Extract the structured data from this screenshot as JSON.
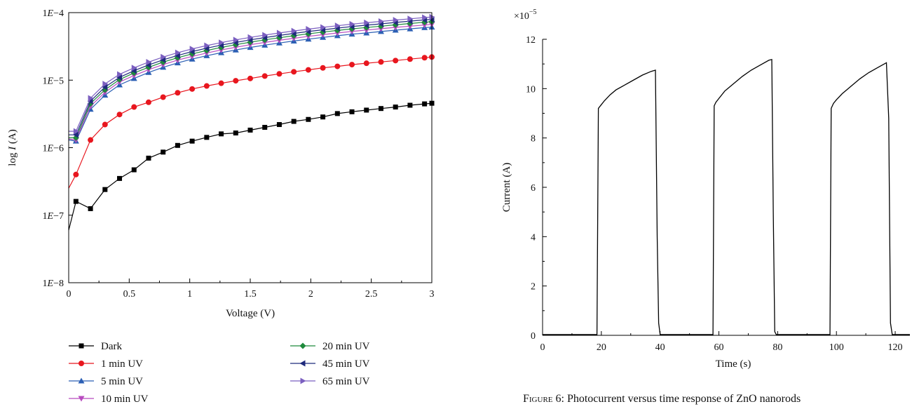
{
  "chart_data": [
    {
      "type": "line",
      "xlabel": "Voltage (V)",
      "ylabel_prefix": "log ",
      "ylabel_var": "I",
      "ylabel_suffix": " (A)",
      "xlim": [
        0,
        3
      ],
      "ylim": [
        1e-08,
        0.0001
      ],
      "yscale": "log",
      "grid": false,
      "legend": "below",
      "x_ticks": [
        "0",
        "0.5",
        "1",
        "1.5",
        "2",
        "2.5",
        "3"
      ],
      "y_ticks": [
        {
          "pre": "1",
          "e": "E",
          "exp": "−4"
        },
        {
          "pre": "1",
          "e": "E",
          "exp": "−5"
        },
        {
          "pre": "1",
          "e": "E",
          "exp": "−6"
        },
        {
          "pre": "1",
          "e": "E",
          "exp": "−7"
        },
        {
          "pre": "1",
          "e": "E",
          "exp": "−8"
        }
      ],
      "x": [
        0,
        0.06,
        0.18,
        0.3,
        0.42,
        0.54,
        0.66,
        0.78,
        0.9,
        1.02,
        1.14,
        1.26,
        1.38,
        1.5,
        1.62,
        1.74,
        1.86,
        1.98,
        2.1,
        2.22,
        2.34,
        2.46,
        2.58,
        2.7,
        2.82,
        2.94,
        3.0
      ],
      "series": [
        {
          "name": "Dark",
          "color": "#000000",
          "marker": "square",
          "first_point_marker": false,
          "values": [
            6e-08,
            1.6e-07,
            1.25e-07,
            2.4e-07,
            3.5e-07,
            4.7e-07,
            7e-07,
            8.6e-07,
            1.08e-06,
            1.25e-06,
            1.42e-06,
            1.6e-06,
            1.65e-06,
            1.82e-06,
            2e-06,
            2.2e-06,
            2.45e-06,
            2.62e-06,
            2.85e-06,
            3.2e-06,
            3.4e-06,
            3.6e-06,
            3.8e-06,
            4e-06,
            4.25e-06,
            4.45e-06,
            4.55e-06
          ]
        },
        {
          "name": "1 min UV",
          "color": "#e8161e",
          "marker": "circle",
          "first_point_marker": false,
          "values": [
            2.5e-07,
            4e-07,
            1.3e-06,
            2.2e-06,
            3.1e-06,
            4e-06,
            4.7e-06,
            5.6e-06,
            6.5e-06,
            7.4e-06,
            8.2e-06,
            9e-06,
            9.8e-06,
            1.06e-05,
            1.15e-05,
            1.24e-05,
            1.33e-05,
            1.42e-05,
            1.52e-05,
            1.6e-05,
            1.7e-05,
            1.78e-05,
            1.86e-05,
            1.95e-05,
            2.05e-05,
            2.15e-05,
            2.2e-05
          ]
        },
        {
          "name": "5 min UV",
          "color": "#2b5fb4",
          "marker": "triangle-up",
          "first_point_marker": false,
          "values": [
            1.3e-06,
            1.25e-06,
            3.7e-06,
            6e-06,
            8.5e-06,
            1.06e-05,
            1.3e-05,
            1.55e-05,
            1.8e-05,
            2.05e-05,
            2.3e-05,
            2.55e-05,
            2.8e-05,
            3.05e-05,
            3.3e-05,
            3.55e-05,
            3.8e-05,
            4.05e-05,
            4.3e-05,
            4.55e-05,
            4.8e-05,
            5e-05,
            5.25e-05,
            5.5e-05,
            5.75e-05,
            6e-05,
            6.1e-05
          ]
        },
        {
          "name": "10 min UV",
          "color": "#b84bbf",
          "marker": "triangle-down",
          "first_point_marker": false,
          "values": [
            1.35e-06,
            1.3e-06,
            4.1e-06,
            6.6e-06,
            9.4e-06,
            1.17e-05,
            1.43e-05,
            1.7e-05,
            1.98e-05,
            2.25e-05,
            2.52e-05,
            2.8e-05,
            3.07e-05,
            3.35e-05,
            3.62e-05,
            3.9e-05,
            4.17e-05,
            4.45e-05,
            4.72e-05,
            5e-05,
            5.27e-05,
            5.52e-05,
            5.78e-05,
            6.05e-05,
            6.3e-05,
            6.55e-05,
            6.7e-05
          ]
        },
        {
          "name": "20 min UV",
          "color": "#1e8a3c",
          "marker": "diamond",
          "first_point_marker": false,
          "values": [
            1.4e-06,
            1.4e-06,
            4.5e-06,
            7.2e-06,
            1.02e-05,
            1.28e-05,
            1.55e-05,
            1.85e-05,
            2.15e-05,
            2.45e-05,
            2.75e-05,
            3.05e-05,
            3.35e-05,
            3.65e-05,
            3.95e-05,
            4.25e-05,
            4.55e-05,
            4.85e-05,
            5.15e-05,
            5.45e-05,
            5.75e-05,
            6.02e-05,
            6.3e-05,
            6.6e-05,
            6.9e-05,
            7.2e-05,
            7.35e-05
          ]
        },
        {
          "name": "45 min UV",
          "color": "#1f2a7c",
          "marker": "triangle-left",
          "first_point_marker": false,
          "values": [
            1.55e-06,
            1.55e-06,
            4.9e-06,
            7.9e-06,
            1.1e-05,
            1.38e-05,
            1.68e-05,
            2e-05,
            2.32e-05,
            2.65e-05,
            2.97e-05,
            3.3e-05,
            3.62e-05,
            3.95e-05,
            4.27e-05,
            4.6e-05,
            4.92e-05,
            5.25e-05,
            5.57e-05,
            5.9e-05,
            6.22e-05,
            6.52e-05,
            6.82e-05,
            7.15e-05,
            7.48e-05,
            7.8e-05,
            7.95e-05
          ]
        },
        {
          "name": "65 min UV",
          "color": "#7b5fc0",
          "marker": "triangle-right",
          "first_point_marker": false,
          "values": [
            1.75e-06,
            1.75e-06,
            5.4e-06,
            8.8e-06,
            1.22e-05,
            1.52e-05,
            1.85e-05,
            2.2e-05,
            2.55e-05,
            2.9e-05,
            3.25e-05,
            3.6e-05,
            3.95e-05,
            4.3e-05,
            4.65e-05,
            5e-05,
            5.35e-05,
            5.7e-05,
            6.05e-05,
            6.4e-05,
            6.75e-05,
            7.08e-05,
            7.42e-05,
            7.76e-05,
            8.1e-05,
            8.45e-05,
            8.6e-05
          ]
        }
      ]
    },
    {
      "type": "line",
      "xlabel": "Time (s)",
      "ylabel": "Current (A)",
      "y_multiplier_prefix": "×10",
      "y_multiplier_exp": "−5",
      "xlim": [
        0,
        125
      ],
      "ylim": [
        0,
        12
      ],
      "grid": false,
      "x_ticks": [
        "0",
        "20",
        "40",
        "60",
        "80",
        "100",
        "120"
      ],
      "y_ticks": [
        "0",
        "2",
        "4",
        "6",
        "8",
        "10",
        "12"
      ],
      "series": [
        {
          "color": "#000000",
          "x": [
            0,
            18.5,
            19.0,
            20,
            21,
            23,
            25,
            28,
            31,
            34,
            37,
            38.4,
            39.0,
            39.5,
            40.0,
            58.0,
            58.4,
            59,
            60,
            62,
            65,
            68,
            71,
            74,
            77,
            78.0,
            78.5,
            79.0,
            79.5,
            97.8,
            98.2,
            99,
            100,
            102,
            105,
            108,
            111,
            114,
            117,
            117.8,
            118.4,
            119.0,
            125
          ],
          "values": [
            0.03,
            0.03,
            9.2,
            9.35,
            9.5,
            9.75,
            9.95,
            10.15,
            10.35,
            10.55,
            10.7,
            10.75,
            4.0,
            0.5,
            0.03,
            0.03,
            9.3,
            9.45,
            9.6,
            9.9,
            10.2,
            10.5,
            10.75,
            10.95,
            11.15,
            11.18,
            5.0,
            0.15,
            0.03,
            0.03,
            9.2,
            9.4,
            9.55,
            9.8,
            10.1,
            10.4,
            10.65,
            10.85,
            11.05,
            8.8,
            0.5,
            0.03,
            0.03
          ]
        }
      ]
    }
  ],
  "caption": {
    "label": "Figure 6",
    "text": ": Photocurrent versus time response of ZnO nanorods"
  }
}
